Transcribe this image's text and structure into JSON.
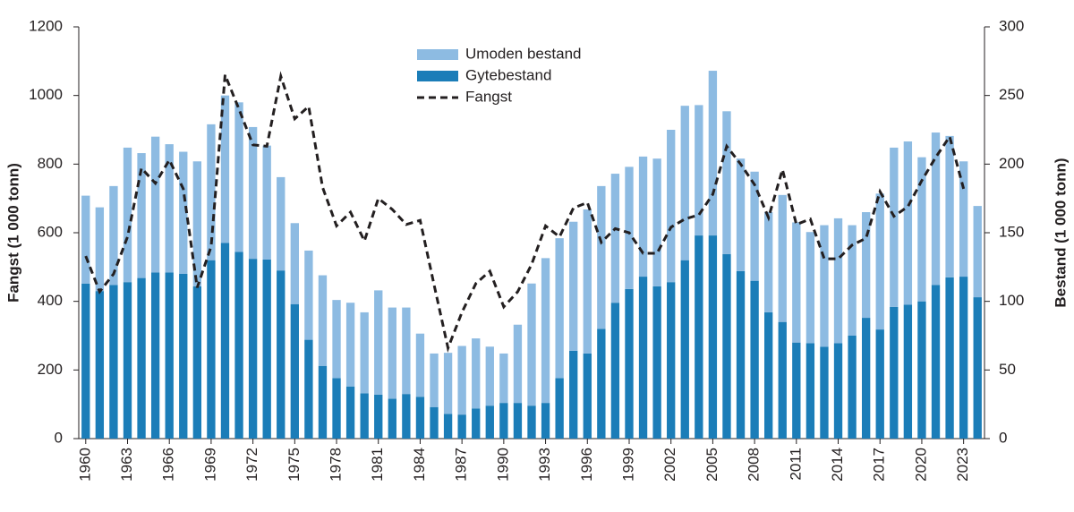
{
  "chart_data": {
    "type": "bar",
    "x": [
      1960,
      1961,
      1962,
      1963,
      1964,
      1965,
      1966,
      1967,
      1968,
      1969,
      1970,
      1971,
      1972,
      1973,
      1974,
      1975,
      1976,
      1977,
      1978,
      1979,
      1980,
      1981,
      1982,
      1983,
      1984,
      1985,
      1986,
      1987,
      1988,
      1989,
      1990,
      1991,
      1992,
      1993,
      1994,
      1995,
      1996,
      1997,
      1998,
      1999,
      2000,
      2001,
      2002,
      2003,
      2004,
      2005,
      2006,
      2007,
      2008,
      2009,
      2010,
      2011,
      2012,
      2013,
      2014,
      2015,
      2016,
      2017,
      2018,
      2019,
      2020,
      2021,
      2022,
      2023,
      2024
    ],
    "xlim": [
      1959.5,
      2024.5
    ],
    "xticks": [
      1960,
      1963,
      1966,
      1969,
      1972,
      1975,
      1978,
      1981,
      1984,
      1987,
      1990,
      1993,
      1996,
      1999,
      2002,
      2005,
      2008,
      2011,
      2014,
      2017,
      2020,
      2023
    ],
    "ylabel": "Fangst (1 000 tonn)",
    "y2label": "Bestand (1 000 tonn)",
    "ylim": [
      0,
      1200
    ],
    "yticks": [
      0,
      200,
      400,
      600,
      800,
      1000,
      1200
    ],
    "y2lim": [
      0,
      300
    ],
    "y2ticks": [
      0,
      50,
      100,
      150,
      200,
      250,
      300
    ],
    "series": [
      {
        "name": "Umoden bestand",
        "color": "#8dbbe2",
        "axis": "y2",
        "kind": "bar",
        "values": [
          64,
          61,
          72,
          98,
          91,
          99,
          93.5,
          89,
          91,
          99,
          107.5,
          109,
          96,
          83,
          68,
          59,
          65,
          66,
          57,
          61,
          59,
          76,
          66.5,
          63,
          46,
          39,
          44.5,
          50,
          51,
          43,
          36,
          57,
          89,
          105.5,
          102,
          94,
          105,
          104,
          94,
          89,
          87.5,
          93,
          111,
          112.5,
          95,
          120,
          104,
          82,
          79.5,
          73,
          92.5,
          87.5,
          81,
          88.5,
          91,
          80.5,
          77,
          99,
          116,
          119,
          105,
          111,
          103,
          84,
          66.5
        ]
      },
      {
        "name": "Gytebestand",
        "color": "#1b7db8",
        "axis": "y2",
        "kind": "bar",
        "values": [
          113,
          107.5,
          112,
          114,
          117,
          121,
          121,
          120,
          111,
          130,
          142.5,
          136,
          131,
          130.5,
          122.5,
          98,
          72,
          53,
          44,
          38,
          33,
          32,
          29,
          32.5,
          30.5,
          23,
          18,
          17.5,
          22,
          24,
          26,
          26,
          24,
          26,
          44,
          64,
          62,
          80,
          99,
          109,
          118,
          111,
          114,
          130,
          148,
          148,
          134.5,
          122,
          115,
          92,
          85,
          70,
          69.5,
          67,
          69.5,
          75,
          88,
          79.5,
          96,
          97.5,
          100,
          112,
          117.5,
          118,
          103
        ]
      },
      {
        "name": "Fangst",
        "color": "#231f20",
        "kind": "line",
        "values": [
          532,
          428,
          480,
          588,
          788,
          744,
          812,
          728,
          440,
          560,
          1060,
          960,
          856,
          852,
          1056,
          932,
          968,
          732,
          620,
          660,
          576,
          700,
          668,
          624,
          636,
          448,
          264,
          368,
          452,
          488,
          384,
          428,
          508,
          620,
          588,
          672,
          688,
          572,
          612,
          600,
          540,
          540,
          616,
          640,
          652,
          712,
          852,
          800,
          740,
          644,
          784,
          624,
          640,
          524,
          524,
          564,
          584,
          720,
          648,
          676,
          752,
          820,
          880,
          728,
          null
        ]
      }
    ]
  }
}
